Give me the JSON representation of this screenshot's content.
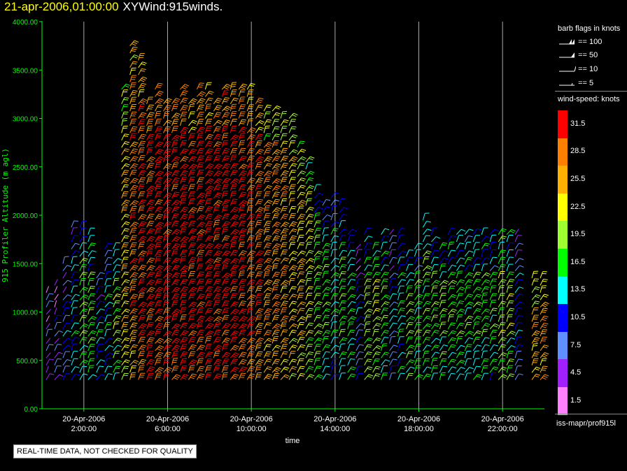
{
  "title": {
    "date": "21-apr-2006,01:00:00",
    "product": "XYWind:915winds."
  },
  "quality_note": "REAL-TIME DATA, NOT CHECKED FOR QUALITY",
  "legend": {
    "flags_title": "barb flags in knots",
    "flags": [
      {
        "label": "== 100"
      },
      {
        "label": "== 50"
      },
      {
        "label": "== 10"
      },
      {
        "label": "== 5"
      }
    ],
    "speed_title": "wind-speed: knots",
    "speed_bins": [
      {
        "label": "31.5",
        "color": "#ff0000"
      },
      {
        "label": "28.5",
        "color": "#ff8000"
      },
      {
        "label": "25.5",
        "color": "#ffb000"
      },
      {
        "label": "22.5",
        "color": "#ffff00"
      },
      {
        "label": "19.5",
        "color": "#a0ff30"
      },
      {
        "label": "16.5",
        "color": "#00ff00"
      },
      {
        "label": "13.5",
        "color": "#00ffff"
      },
      {
        "label": "10.5",
        "color": "#0000ff"
      },
      {
        "label": "7.5",
        "color": "#6090ff"
      },
      {
        "label": "4.5",
        "color": "#a020ff"
      },
      {
        "label": "1.5",
        "color": "#ff80ff"
      }
    ],
    "footer": "iss-mapr/prof915l"
  },
  "chart_data": {
    "type": "wind-barb time-height",
    "xlabel": "time",
    "ylabel": "915 Profiler Altitude (m agl)",
    "ylim": [
      0,
      4000
    ],
    "yticks": [
      "0.00",
      "500.00",
      "1000.00",
      "1500.00",
      "2000.00",
      "2500.00",
      "3000.00",
      "3500.00",
      "4000.00"
    ],
    "xlim_hours": [
      0.0,
      24.0
    ],
    "xticks": [
      {
        "hour": 2,
        "date": "20-Apr-2006",
        "time": "2:00:00"
      },
      {
        "hour": 6,
        "date": "20-Apr-2006",
        "time": "6:00:00"
      },
      {
        "hour": 10,
        "date": "20-Apr-2006",
        "time": "10:00:00"
      },
      {
        "hour": 14,
        "date": "20-Apr-2006",
        "time": "14:00:00"
      },
      {
        "hour": 18,
        "date": "20-Apr-2006",
        "time": "18:00:00"
      },
      {
        "hour": 22,
        "date": "20-Apr-2006",
        "time": "22:00:00"
      }
    ],
    "grid": "vertical lines at time ticks",
    "columns": [
      {
        "t": 0.2,
        "top": 1200,
        "speed": 8
      },
      {
        "t": 0.6,
        "top": 1300,
        "speed": 9
      },
      {
        "t": 1.0,
        "top": 1500,
        "speed": 11
      },
      {
        "t": 1.4,
        "top": 1900,
        "speed": 14
      },
      {
        "t": 1.8,
        "top": 1900,
        "speed": 17
      },
      {
        "t": 2.2,
        "top": 1800,
        "speed": 18
      },
      {
        "t": 2.6,
        "top": 1400,
        "speed": 13
      },
      {
        "t": 3.0,
        "top": 1700,
        "speed": 14
      },
      {
        "t": 3.4,
        "top": 1700,
        "speed": 19
      },
      {
        "t": 3.8,
        "top": 3300,
        "speed": 24
      },
      {
        "t": 4.2,
        "top": 3800,
        "speed": 28
      },
      {
        "t": 4.6,
        "top": 3600,
        "speed": 30
      },
      {
        "t": 5.0,
        "top": 3200,
        "speed": 31
      },
      {
        "t": 5.4,
        "top": 3300,
        "speed": 32
      },
      {
        "t": 5.8,
        "top": 3200,
        "speed": 32
      },
      {
        "t": 6.2,
        "top": 3200,
        "speed": 32
      },
      {
        "t": 6.6,
        "top": 3300,
        "speed": 32
      },
      {
        "t": 7.0,
        "top": 3200,
        "speed": 32
      },
      {
        "t": 7.4,
        "top": 3300,
        "speed": 32
      },
      {
        "t": 7.8,
        "top": 3300,
        "speed": 32
      },
      {
        "t": 8.2,
        "top": 3200,
        "speed": 32
      },
      {
        "t": 8.6,
        "top": 3300,
        "speed": 32
      },
      {
        "t": 9.0,
        "top": 3300,
        "speed": 32
      },
      {
        "t": 9.4,
        "top": 3300,
        "speed": 31
      },
      {
        "t": 9.8,
        "top": 3300,
        "speed": 30
      },
      {
        "t": 10.2,
        "top": 3200,
        "speed": 29
      },
      {
        "t": 10.6,
        "top": 3100,
        "speed": 27
      },
      {
        "t": 11.0,
        "top": 3100,
        "speed": 27
      },
      {
        "t": 11.4,
        "top": 3000,
        "speed": 26
      },
      {
        "t": 11.8,
        "top": 3000,
        "speed": 24
      },
      {
        "t": 12.2,
        "top": 2700,
        "speed": 24
      },
      {
        "t": 12.6,
        "top": 2600,
        "speed": 21
      },
      {
        "t": 13.0,
        "top": 2300,
        "speed": 19
      },
      {
        "t": 13.4,
        "top": 2100,
        "speed": 17
      },
      {
        "t": 13.8,
        "top": 2200,
        "speed": 14
      },
      {
        "t": 14.2,
        "top": 2100,
        "speed": 17
      },
      {
        "t": 14.6,
        "top": 1800,
        "speed": 16
      },
      {
        "t": 15.0,
        "top": 1700,
        "speed": 10
      },
      {
        "t": 15.4,
        "top": 1800,
        "speed": 19
      },
      {
        "t": 15.8,
        "top": 1700,
        "speed": 20
      },
      {
        "t": 16.2,
        "top": 1800,
        "speed": 18
      },
      {
        "t": 16.6,
        "top": 1800,
        "speed": 11
      },
      {
        "t": 17.0,
        "top": 1800,
        "speed": 15
      },
      {
        "t": 17.4,
        "top": 1600,
        "speed": 18
      },
      {
        "t": 17.8,
        "top": 1700,
        "speed": 17
      },
      {
        "t": 18.2,
        "top": 2000,
        "speed": 17
      },
      {
        "t": 18.6,
        "top": 1800,
        "speed": 18
      },
      {
        "t": 19.0,
        "top": 1700,
        "speed": 18
      },
      {
        "t": 19.4,
        "top": 1800,
        "speed": 17
      },
      {
        "t": 19.8,
        "top": 1800,
        "speed": 17
      },
      {
        "t": 20.2,
        "top": 1800,
        "speed": 17
      },
      {
        "t": 20.6,
        "top": 1800,
        "speed": 17
      },
      {
        "t": 21.0,
        "top": 1800,
        "speed": 17
      },
      {
        "t": 21.4,
        "top": 1800,
        "speed": 16
      },
      {
        "t": 21.8,
        "top": 1800,
        "speed": 20
      },
      {
        "t": 22.2,
        "top": 1800,
        "speed": 19
      },
      {
        "t": 22.6,
        "top": 1800,
        "speed": 11
      },
      {
        "t": 23.4,
        "top": 1400,
        "speed": 26
      },
      {
        "t": 23.8,
        "top": 1400,
        "speed": 28
      }
    ]
  }
}
